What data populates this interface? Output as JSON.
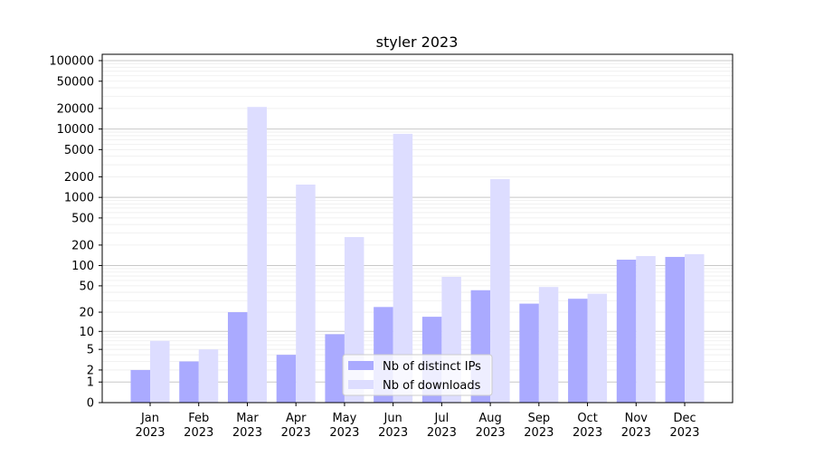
{
  "chart_data": {
    "type": "bar",
    "title": "styler 2023",
    "xlabel": "",
    "ylabel": "",
    "yscale": "symlog",
    "ylim": [
      0,
      124000
    ],
    "yticks": [
      "0",
      "1",
      "2",
      "5",
      "10",
      "20",
      "50",
      "100",
      "200",
      "500",
      "1000",
      "2000",
      "5000",
      "10000",
      "20000",
      "50000",
      "100000"
    ],
    "categories": [
      [
        "Jan",
        "2023"
      ],
      [
        "Feb",
        "2023"
      ],
      [
        "Mar",
        "2023"
      ],
      [
        "Apr",
        "2023"
      ],
      [
        "May",
        "2023"
      ],
      [
        "Jun",
        "2023"
      ],
      [
        "Jul",
        "2023"
      ],
      [
        "Aug",
        "2023"
      ],
      [
        "Sep",
        "2023"
      ],
      [
        "Oct",
        "2023"
      ],
      [
        "Nov",
        "2023"
      ],
      [
        "Dec",
        "2023"
      ]
    ],
    "series": [
      {
        "name": "Nb of distinct IPs",
        "color": "#aaaaff",
        "values": [
          2,
          3,
          20,
          4,
          9,
          24,
          17,
          43,
          27,
          32,
          122,
          134
        ]
      },
      {
        "name": "Nb of downloads",
        "color": "#ddddff",
        "values": [
          7,
          5,
          21000,
          1540,
          262,
          8500,
          68,
          1850,
          48,
          38,
          138,
          147
        ]
      }
    ],
    "grid": true,
    "legend": "lower-center"
  }
}
